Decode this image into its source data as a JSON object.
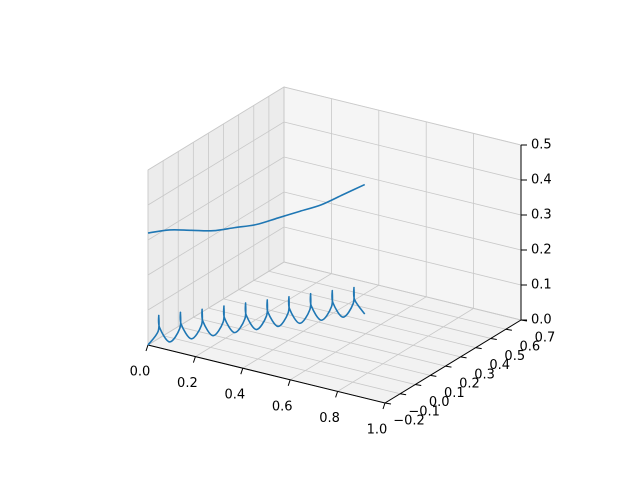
{
  "chart_data": {
    "type": "line3d",
    "xlim": [
      0,
      1
    ],
    "ylim": [
      -0.2,
      0.7
    ],
    "zlim": [
      0,
      0.5
    ],
    "xticks": [
      {
        "value": 0,
        "label": "0.0"
      },
      0.2,
      0.4,
      0.6,
      0.8,
      {
        "value": 1,
        "label": "1.0"
      }
    ],
    "yticks": [
      {
        "value": -0.2,
        "label": "−0.2"
      },
      {
        "value": -0.1,
        "label": "−0.1"
      },
      {
        "value": 0,
        "label": "0.0"
      },
      0.1,
      0.2,
      0.3,
      0.4,
      0.5,
      0.6,
      0.7
    ],
    "zticks": [
      {
        "value": 0,
        "label": "0.0"
      },
      0.1,
      0.2,
      0.3,
      0.4,
      0.5
    ],
    "grid": true,
    "series": [
      {
        "color": "#1f77b4",
        "x": [
          0,
          0.05,
          0.1,
          0.15,
          0.2,
          0.25,
          0.3,
          0.35,
          0.4,
          0.45,
          0.5
        ],
        "y": [
          -0.2,
          -0.135,
          -0.07,
          -0.005,
          0.06,
          0.125,
          0.19,
          0.255,
          0.32,
          0.385,
          0.45
        ],
        "z": [
          0.32,
          0.32,
          0.31,
          0.3,
          0.3,
          0.3,
          0.31,
          0.32,
          0.33,
          0.35,
          0.37
        ]
      },
      {
        "color": "#1f77b4",
        "x": [
          0,
          0.0325,
          0.025,
          0.0175,
          0.05,
          0.0825,
          0.075,
          0.0675,
          0.1,
          0.1325,
          0.125,
          0.1175,
          0.15,
          0.1825,
          0.175,
          0.1675,
          0.2,
          0.2325,
          0.225,
          0.2175,
          0.25,
          0.2825,
          0.275,
          0.2675,
          0.3,
          0.3325,
          0.325,
          0.3175,
          0.35,
          0.3825,
          0.375,
          0.3675,
          0.4,
          0.4325,
          0.425,
          0.4175,
          0.45,
          0.4825,
          0.475,
          0.4675,
          0.5
        ],
        "y": [
          -0.2,
          -0.184,
          -0.168,
          -0.151,
          -0.135,
          -0.119,
          -0.103,
          -0.086,
          -0.07,
          -0.054,
          -0.038,
          -0.021,
          -0.005,
          0.011,
          0.028,
          0.044,
          0.06,
          0.076,
          0.093,
          0.109,
          0.125,
          0.141,
          0.158,
          0.174,
          0.19,
          0.206,
          0.223,
          0.239,
          0.255,
          0.271,
          0.288,
          0.304,
          0.32,
          0.336,
          0.353,
          0.369,
          0.385,
          0.401,
          0.418,
          0.434,
          0.45
        ],
        "z": [
          0,
          0.04,
          0.08,
          0.04,
          0,
          0.04,
          0.08,
          0.04,
          0,
          0.04,
          0.08,
          0.04,
          0,
          0.04,
          0.08,
          0.04,
          0,
          0.04,
          0.08,
          0.04,
          0,
          0.04,
          0.08,
          0.04,
          0,
          0.04,
          0.08,
          0.04,
          0,
          0.04,
          0.08,
          0.04,
          0,
          0.04,
          0.08,
          0.04,
          0,
          0.04,
          0.08,
          0.04,
          0
        ]
      }
    ]
  }
}
